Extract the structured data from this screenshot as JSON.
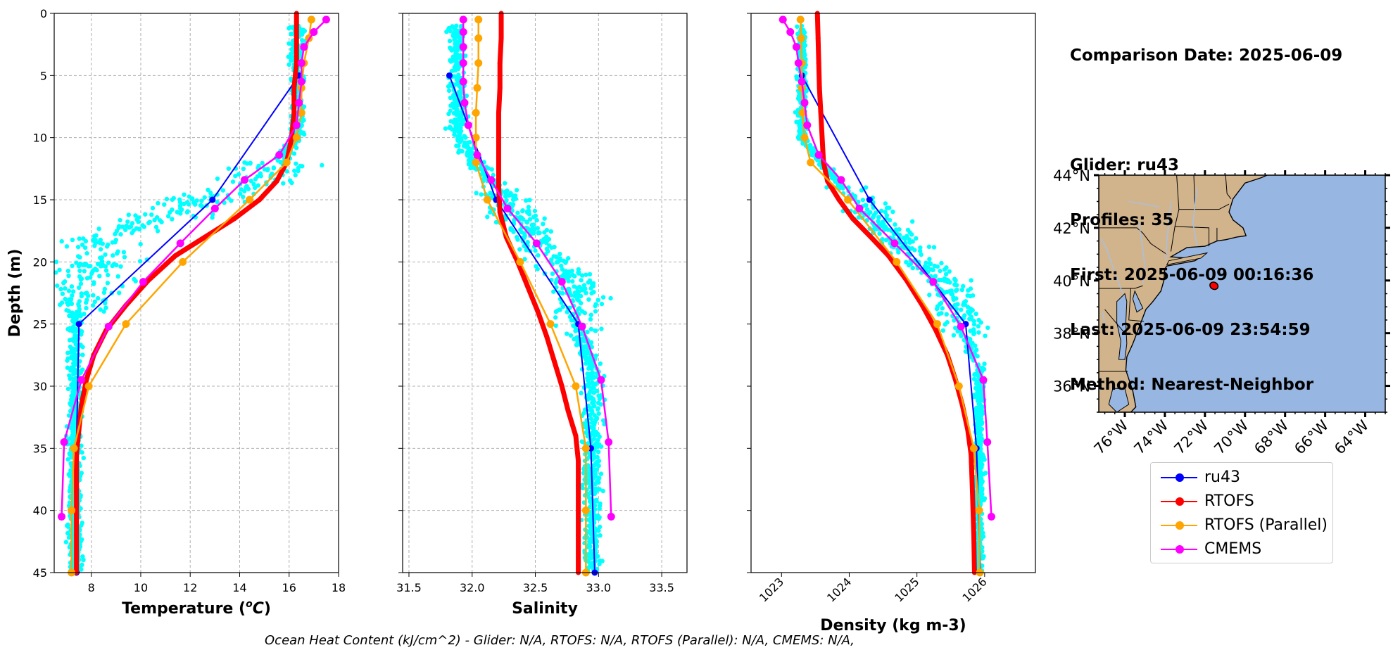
{
  "info": {
    "comparison_date": "Comparison Date: 2025-06-09",
    "glider": "Glider: ru43",
    "profiles": "Profiles: 35",
    "first": "First: 2025-06-09 00:16:36",
    "last": "Last: 2025-06-09 23:54:59",
    "method": "Method: Nearest-Neighbor"
  },
  "footer": "Ocean Heat Content (kJ/cm^2) - Glider: N/A,  RTOFS: N/A,  RTOFS (Parallel): N/A,  CMEMS: N/A,",
  "legend": [
    {
      "name": "ru43",
      "color": "#0000ff"
    },
    {
      "name": "RTOFS",
      "color": "#ff0000"
    },
    {
      "name": "RTOFS (Parallel)",
      "color": "#ffa500"
    },
    {
      "name": "CMEMS",
      "color": "#ff00ff"
    }
  ],
  "colors": {
    "scatter": "#00ffff",
    "land": "#d2b48c",
    "ocean": "#97b6e1",
    "grid": "#b0b0b0"
  },
  "chart_data": [
    {
      "type": "line",
      "xlabel": "Temperature ($^oC$)",
      "xlabel_text": "Temperature (",
      "xlabel_sup": "o",
      "xlabel_unit": "C",
      "ylabel": "Depth (m)",
      "xlim": [
        6.5,
        18
      ],
      "ylim": [
        45,
        0
      ],
      "xticks": [
        8,
        10,
        12,
        14,
        16,
        18
      ],
      "yticks": [
        0,
        5,
        10,
        15,
        20,
        25,
        30,
        35,
        40,
        45
      ],
      "grid": true,
      "series": [
        {
          "name": "ru43",
          "color": "#0000ff",
          "width": 2,
          "marker": 9,
          "x": [
            16.4,
            12.9,
            7.5,
            7.4,
            7.4
          ],
          "y": [
            5,
            15,
            25,
            35,
            45
          ]
        },
        {
          "name": "RTOFS",
          "color": "#ff0000",
          "width": 7,
          "marker": 7,
          "x": [
            16.3,
            16.3,
            16.3,
            16.2,
            16.2,
            16.1,
            15.9,
            15.5,
            14.8,
            13.8,
            12.6,
            11.4,
            10.3,
            9.4,
            8.6,
            8.1,
            7.8,
            7.6,
            7.5,
            7.4,
            7.4,
            7.4,
            7.4
          ],
          "y": [
            0,
            2,
            4,
            6,
            8,
            10,
            12,
            13.5,
            15,
            16.5,
            18,
            19.5,
            21.5,
            23.5,
            25.5,
            27.5,
            29.5,
            31.5,
            33.5,
            35.5,
            38.5,
            42,
            45
          ]
        },
        {
          "name": "RTOFS (Parallel)",
          "color": "#ffa500",
          "width": 2.5,
          "marker": 11,
          "x": [
            16.9,
            16.8,
            16.6,
            16.5,
            16.5,
            16.3,
            15.9,
            14.4,
            11.7,
            9.4,
            7.9,
            7.3,
            7.2,
            7.2
          ],
          "y": [
            0.5,
            2,
            4,
            6,
            8,
            10,
            12,
            15,
            20,
            25,
            30,
            35,
            40,
            45
          ]
        },
        {
          "name": "CMEMS",
          "color": "#ff00ff",
          "width": 2.5,
          "marker": 11,
          "x": [
            17.5,
            17.0,
            16.6,
            16.5,
            16.5,
            16.4,
            16.3,
            15.6,
            14.2,
            13.0,
            11.6,
            10.1,
            8.7,
            7.6,
            6.9,
            6.8
          ],
          "y": [
            0.5,
            1.5,
            2.7,
            4.0,
            5.5,
            7.2,
            9.0,
            11.4,
            13.4,
            15.7,
            18.5,
            21.6,
            25.2,
            29.5,
            34.5,
            40.5
          ]
        }
      ]
    },
    {
      "type": "line",
      "xlabel": "Salinity",
      "xlim": [
        31.45,
        33.7
      ],
      "ylim": [
        45,
        0
      ],
      "xticks": [
        31.5,
        32.0,
        32.5,
        33.0,
        33.5
      ],
      "xticklabels": [
        "31.5",
        "32.0",
        "32.5",
        "33.0",
        "33.5"
      ],
      "grid": true,
      "series": [
        {
          "name": "ru43",
          "color": "#0000ff",
          "width": 2,
          "marker": 9,
          "x": [
            31.82,
            32.19,
            32.84,
            32.94,
            32.97
          ],
          "y": [
            5,
            15,
            25,
            35,
            45
          ]
        },
        {
          "name": "RTOFS",
          "color": "#ff0000",
          "width": 7,
          "marker": 7,
          "x": [
            32.23,
            32.23,
            32.22,
            32.22,
            32.21,
            32.21,
            32.21,
            32.21,
            32.22,
            32.27,
            32.36,
            32.44,
            32.52,
            32.59,
            32.65,
            32.71,
            32.76,
            32.82,
            32.84,
            32.84,
            32.84,
            32.84
          ],
          "y": [
            0,
            2,
            4,
            6,
            8,
            10,
            12,
            14,
            16,
            18,
            20,
            22,
            24,
            26,
            28,
            30,
            32,
            34,
            36,
            38,
            42,
            45
          ]
        },
        {
          "name": "RTOFS (Parallel)",
          "color": "#ffa500",
          "width": 2.5,
          "marker": 11,
          "x": [
            32.05,
            32.05,
            32.05,
            32.04,
            32.03,
            32.03,
            32.03,
            32.12,
            32.38,
            32.62,
            32.82,
            32.9,
            32.9,
            32.9
          ],
          "y": [
            0.5,
            2,
            4,
            6,
            8,
            10,
            12,
            15,
            20,
            25,
            30,
            35,
            40,
            45
          ]
        },
        {
          "name": "CMEMS",
          "color": "#ff00ff",
          "width": 2.5,
          "marker": 11,
          "x": [
            31.93,
            31.93,
            31.93,
            31.93,
            31.93,
            31.94,
            31.97,
            32.04,
            32.15,
            32.28,
            32.51,
            32.71,
            32.87,
            33.02,
            33.08,
            33.1
          ],
          "y": [
            0.5,
            1.5,
            2.7,
            4.0,
            5.5,
            7.2,
            9.0,
            11.4,
            13.4,
            15.7,
            18.5,
            21.6,
            25.2,
            29.5,
            34.5,
            40.5
          ]
        }
      ]
    },
    {
      "type": "line",
      "xlabel": "Density (kg m-3)",
      "xlim": [
        1022.55,
        1026.75
      ],
      "ylim": [
        45,
        0
      ],
      "xticks": [
        1023,
        1024,
        1025,
        1026
      ],
      "xticklabels": [
        "1023",
        "1024",
        "1025",
        "1026"
      ],
      "xtick_rotation": 45,
      "grid": false,
      "series": [
        {
          "name": "ru43",
          "color": "#0000ff",
          "width": 2,
          "marker": 9,
          "x": [
            1023.3,
            1024.3,
            1025.72,
            1025.88,
            1025.94
          ],
          "y": [
            5,
            15,
            25,
            35,
            45
          ]
        },
        {
          "name": "RTOFS",
          "color": "#ff0000",
          "width": 7,
          "marker": 7,
          "x": [
            1023.53,
            1023.54,
            1023.55,
            1023.56,
            1023.58,
            1023.6,
            1023.62,
            1023.68,
            1023.85,
            1024.05,
            1024.32,
            1024.58,
            1024.85,
            1025.08,
            1025.28,
            1025.45,
            1025.57,
            1025.67,
            1025.75,
            1025.8,
            1025.82,
            1025.84,
            1025.85
          ],
          "y": [
            0,
            2,
            4,
            6,
            8,
            10,
            12,
            13.5,
            15,
            16.5,
            18,
            19.5,
            21.5,
            23.5,
            25.5,
            27.5,
            29.5,
            31.5,
            33.5,
            35.5,
            38.5,
            42,
            45
          ]
        },
        {
          "name": "RTOFS (Parallel)",
          "color": "#ffa500",
          "width": 2.5,
          "marker": 11,
          "x": [
            1023.28,
            1023.29,
            1023.3,
            1023.3,
            1023.31,
            1023.34,
            1023.43,
            1023.98,
            1024.7,
            1025.3,
            1025.62,
            1025.84,
            1025.92,
            1025.93
          ],
          "y": [
            0.5,
            2,
            4,
            6,
            8,
            10,
            12,
            15,
            20,
            25,
            30,
            35,
            40,
            45
          ]
        },
        {
          "name": "CMEMS",
          "color": "#ff00ff",
          "width": 2.5,
          "marker": 11,
          "x": [
            1023.02,
            1023.13,
            1023.22,
            1023.25,
            1023.3,
            1023.34,
            1023.38,
            1023.55,
            1023.88,
            1024.15,
            1024.67,
            1025.24,
            1025.65,
            1025.98,
            1026.04,
            1026.1
          ],
          "y": [
            0.5,
            1.5,
            2.7,
            4.0,
            5.5,
            7.2,
            9.0,
            11.4,
            13.4,
            15.7,
            18.5,
            21.6,
            25.2,
            29.5,
            34.5,
            40.5
          ]
        }
      ]
    },
    {
      "type": "map",
      "lon_range": [
        -77.3,
        -63.0
      ],
      "lat_range": [
        35.0,
        44.0
      ],
      "xticks": [
        -76,
        -74,
        -72,
        -70,
        -68,
        -66,
        -64
      ],
      "xticklabels": [
        "76°W",
        "74°W",
        "72°W",
        "70°W",
        "68°W",
        "66°W",
        "64°W"
      ],
      "yticks": [
        36,
        38,
        40,
        42,
        44
      ],
      "yticklabels": [
        "36°N",
        "38°N",
        "40°N",
        "42°N",
        "44°N"
      ],
      "glider_position": {
        "lon": -71.55,
        "lat": 39.8
      }
    }
  ]
}
